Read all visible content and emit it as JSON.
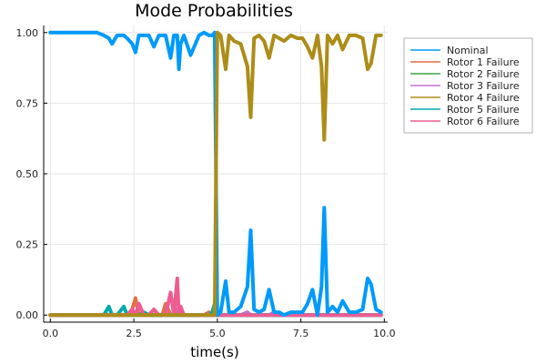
{
  "chart_data": {
    "type": "line",
    "title": "Mode Probabilities",
    "xlabel": "time(s)",
    "ylabel": "",
    "xlim": [
      -0.2,
      10.1
    ],
    "ylim": [
      -0.025,
      1.025
    ],
    "xticks": [
      "0.0",
      "2.5",
      "5.0",
      "7.5",
      "10.0"
    ],
    "xtick_values": [
      0,
      2.5,
      5,
      7.5,
      10
    ],
    "yticks": [
      "0.00",
      "0.25",
      "0.50",
      "0.75",
      "1.00"
    ],
    "ytick_values": [
      0,
      0.25,
      0.5,
      0.75,
      1.0
    ],
    "grid": true,
    "legend_position": "outside-top-right",
    "x": [
      0.0,
      0.5,
      1.0,
      1.4,
      1.6,
      1.75,
      1.85,
      2.0,
      2.2,
      2.3,
      2.45,
      2.55,
      2.65,
      2.8,
      2.95,
      3.1,
      3.25,
      3.35,
      3.45,
      3.6,
      3.7,
      3.8,
      3.85,
      3.9,
      4.0,
      4.2,
      4.45,
      4.6,
      4.75,
      4.85,
      4.92,
      5.0,
      5.1,
      5.25,
      5.35,
      5.5,
      5.7,
      5.9,
      6.0,
      6.1,
      6.25,
      6.4,
      6.55,
      6.7,
      6.85,
      7.0,
      7.2,
      7.4,
      7.55,
      7.7,
      7.85,
      8.0,
      8.12,
      8.2,
      8.3,
      8.45,
      8.6,
      8.75,
      8.95,
      9.15,
      9.35,
      9.5,
      9.6,
      9.75,
      9.9
    ],
    "series": [
      {
        "name": "Nominal",
        "color": "#009AFA",
        "values": [
          1.0,
          1.0,
          1.0,
          1.0,
          0.99,
          0.98,
          0.96,
          0.99,
          0.99,
          0.98,
          0.96,
          0.93,
          0.99,
          0.99,
          0.99,
          0.95,
          0.99,
          0.99,
          0.99,
          0.91,
          0.99,
          0.99,
          0.87,
          0.96,
          0.99,
          0.92,
          0.99,
          1.0,
          0.99,
          0.99,
          1.0,
          0.0,
          0.01,
          0.12,
          0.01,
          0.01,
          0.03,
          0.1,
          0.3,
          0.02,
          0.01,
          0.02,
          0.09,
          0.01,
          0.01,
          0.0,
          0.01,
          0.01,
          0.01,
          0.04,
          0.09,
          0.0,
          0.1,
          0.38,
          0.01,
          0.03,
          0.01,
          0.05,
          0.01,
          0.01,
          0.02,
          0.13,
          0.11,
          0.02,
          0.01
        ]
      },
      {
        "name": "Rotor 1 Failure",
        "color": "#E36F47",
        "values": [
          0,
          0,
          0,
          0,
          0,
          0,
          0,
          0,
          0,
          0,
          0.02,
          0.06,
          0,
          0,
          0,
          0,
          0,
          0,
          0.04,
          0,
          0,
          0.02,
          0,
          0,
          0,
          0,
          0,
          0,
          0.01,
          0,
          0,
          0,
          0,
          0,
          0,
          0,
          0,
          0,
          0,
          0,
          0,
          0,
          0,
          0,
          0,
          0,
          0,
          0,
          0,
          0,
          0,
          0,
          0,
          0,
          0,
          0,
          0,
          0,
          0,
          0,
          0,
          0,
          0,
          0,
          0
        ]
      },
      {
        "name": "Rotor 2 Failure",
        "color": "#3EA44E",
        "values": [
          0,
          0,
          0,
          0,
          0,
          0,
          0,
          0,
          0,
          0,
          0,
          0,
          0,
          0,
          0,
          0,
          0,
          0,
          0,
          0,
          0,
          0,
          0,
          0,
          0,
          0,
          0,
          0,
          0,
          0,
          0,
          0,
          0,
          0,
          0,
          0,
          0,
          0,
          0,
          0,
          0,
          0,
          0,
          0,
          0,
          0,
          0,
          0,
          0,
          0,
          0,
          0,
          0,
          0,
          0,
          0,
          0,
          0,
          0,
          0,
          0,
          0,
          0,
          0,
          0
        ]
      },
      {
        "name": "Rotor 3 Failure",
        "color": "#C271D2",
        "values": [
          0,
          0,
          0,
          0,
          0,
          0,
          0,
          0,
          0,
          0,
          0.01,
          0,
          0,
          0,
          0,
          0,
          0,
          0,
          0,
          0,
          0,
          0.02,
          0,
          0,
          0,
          0,
          0,
          0,
          0,
          0,
          0,
          0,
          0,
          0,
          0,
          0,
          0,
          0.01,
          0,
          0,
          0,
          0,
          0,
          0.01,
          0,
          0,
          0,
          0,
          0,
          0,
          0,
          0,
          0,
          0,
          0,
          0,
          0,
          0,
          0,
          0,
          0,
          0,
          0,
          0,
          0
        ]
      },
      {
        "name": "Rotor 4 Failure",
        "color": "#AC8D18",
        "values": [
          0,
          0,
          0,
          0,
          0,
          0,
          0,
          0,
          0,
          0,
          0,
          0,
          0,
          0,
          0,
          0,
          0,
          0,
          0,
          0,
          0,
          0,
          0,
          0,
          0,
          0,
          0,
          0,
          0,
          0,
          0,
          1.0,
          0.99,
          0.87,
          0.99,
          0.97,
          0.96,
          0.88,
          0.7,
          0.98,
          0.99,
          0.97,
          0.91,
          0.99,
          0.98,
          0.97,
          0.99,
          0.98,
          0.98,
          0.95,
          0.91,
          0.99,
          0.88,
          0.62,
          0.99,
          0.96,
          0.99,
          0.94,
          0.99,
          0.99,
          0.98,
          0.87,
          0.89,
          0.99,
          0.99
        ]
      },
      {
        "name": "Rotor 5 Failure",
        "color": "#00A9AD",
        "values": [
          0,
          0,
          0,
          0,
          0,
          0.03,
          0,
          0,
          0.03,
          0,
          0,
          0,
          0,
          0.01,
          0,
          0,
          0,
          0,
          0,
          0,
          0,
          0,
          0,
          0,
          0,
          0,
          0,
          0,
          0,
          0.01,
          0.04,
          0,
          0,
          0,
          0,
          0,
          0,
          0,
          0,
          0,
          0,
          0,
          0,
          0,
          0,
          0,
          0,
          0,
          0,
          0,
          0,
          0,
          0,
          0,
          0,
          0,
          0,
          0,
          0,
          0,
          0,
          0,
          0,
          0,
          0
        ]
      },
      {
        "name": "Rotor 6 Failure",
        "color": "#ED5D92",
        "values": [
          0,
          0,
          0,
          0,
          0,
          0,
          0,
          0,
          0,
          0,
          0.02,
          0,
          0.04,
          0,
          0,
          0.02,
          0,
          0,
          0,
          0.08,
          0,
          0.13,
          0,
          0.03,
          0,
          0,
          0,
          0,
          0,
          0,
          0,
          0,
          0,
          0,
          0,
          0,
          0,
          0,
          0,
          0,
          0,
          0,
          0,
          0,
          0,
          0,
          0,
          0,
          0,
          0,
          0,
          0,
          0,
          0,
          0,
          0,
          0,
          0,
          0,
          0,
          0,
          0,
          0,
          0,
          0
        ]
      }
    ]
  }
}
